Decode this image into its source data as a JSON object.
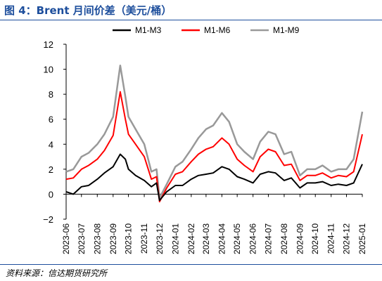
{
  "figure": {
    "title": "图 4：Brent 月间价差（美元/桶）",
    "source": "资料来源：信达期货研究所"
  },
  "colors": {
    "title": "#1d4e9c",
    "m1m3": "#000000",
    "m1m6": "#ff0000",
    "m1m9": "#999999"
  },
  "chart_data": {
    "type": "line",
    "title": "",
    "xlabel": "",
    "ylabel": "",
    "ylim": [
      -2,
      12
    ],
    "yticks": [
      -2,
      0,
      2,
      4,
      6,
      8,
      10,
      12
    ],
    "grid": false,
    "legend_position": "top",
    "x_tick_labels": [
      "2023-06",
      "2023-07",
      "2023-08",
      "2023-09",
      "2023-10",
      "2023-11",
      "2023-12",
      "2024-01",
      "2024-02",
      "2024-03",
      "2024-04",
      "2024-05",
      "2024-06",
      "2024-07",
      "2024-08",
      "2024-09",
      "2024-10",
      "2024-11",
      "2024-12",
      "2025-01"
    ],
    "x": [
      "2023-06",
      "2023-06-15",
      "2023-07",
      "2023-07-15",
      "2023-08",
      "2023-08-15",
      "2023-09",
      "2023-09-15",
      "2023-09-25",
      "2023-10",
      "2023-10-15",
      "2023-11",
      "2023-11-15",
      "2023-11-25",
      "2023-12",
      "2023-12-15",
      "2024-01",
      "2024-01-15",
      "2024-02",
      "2024-02-15",
      "2024-03",
      "2024-03-15",
      "2024-04",
      "2024-04-15",
      "2024-05",
      "2024-05-15",
      "2024-06",
      "2024-06-15",
      "2024-07",
      "2024-07-15",
      "2024-08",
      "2024-08-15",
      "2024-09",
      "2024-09-15",
      "2024-10",
      "2024-10-15",
      "2024-11",
      "2024-11-15",
      "2024-12",
      "2024-12-15",
      "2025-01"
    ],
    "series": [
      {
        "name": "M1-M3",
        "values": [
          0.2,
          0.0,
          0.6,
          0.7,
          1.2,
          1.7,
          2.2,
          3.2,
          2.8,
          2.0,
          1.5,
          1.1,
          0.6,
          0.9,
          -0.5,
          0.2,
          0.7,
          0.7,
          1.2,
          1.5,
          1.6,
          1.7,
          2.2,
          2.0,
          1.4,
          1.2,
          0.9,
          1.6,
          1.8,
          1.7,
          1.1,
          1.3,
          0.5,
          0.9,
          0.9,
          1.0,
          0.7,
          0.8,
          0.7,
          0.9,
          2.4
        ]
      },
      {
        "name": "M1-M6",
        "values": [
          1.2,
          1.3,
          2.0,
          2.3,
          2.8,
          3.5,
          4.7,
          8.2,
          6.0,
          4.8,
          4.0,
          3.0,
          1.2,
          1.4,
          -0.6,
          0.5,
          1.6,
          1.8,
          2.6,
          3.2,
          3.6,
          3.8,
          4.5,
          4.0,
          2.8,
          2.3,
          1.8,
          3.0,
          3.6,
          3.4,
          2.3,
          2.4,
          1.1,
          1.5,
          1.5,
          1.7,
          1.3,
          1.5,
          1.4,
          1.8,
          4.8
        ]
      },
      {
        "name": "M1-M9",
        "values": [
          1.8,
          2.0,
          3.0,
          3.3,
          4.0,
          4.8,
          6.2,
          10.3,
          7.8,
          6.2,
          5.2,
          4.0,
          1.8,
          2.0,
          -0.3,
          0.8,
          2.2,
          2.6,
          3.6,
          4.5,
          5.2,
          5.5,
          6.5,
          5.8,
          4.0,
          3.4,
          2.8,
          4.2,
          5.0,
          4.8,
          3.2,
          3.4,
          1.5,
          2.0,
          2.0,
          2.3,
          1.8,
          2.0,
          2.0,
          2.8,
          6.6
        ]
      }
    ]
  }
}
